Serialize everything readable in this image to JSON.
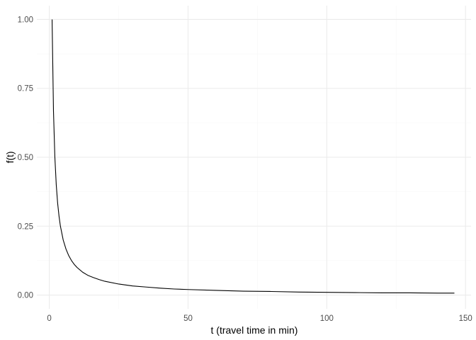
{
  "chart_data": {
    "type": "line",
    "title": "",
    "xlabel": "t (travel time in min)",
    "ylabel": "f(t)",
    "xlim": [
      -4.5,
      152
    ],
    "ylim": [
      -0.05,
      1.05
    ],
    "x_major_ticks": [
      0,
      50,
      100,
      150
    ],
    "x_tick_labels": [
      "0",
      "50",
      "100",
      "150"
    ],
    "x_minor_ticks": [
      25,
      75,
      125
    ],
    "y_major_ticks": [
      0,
      0.25,
      0.5,
      0.75,
      1.0
    ],
    "y_tick_labels": [
      "0.00",
      "0.25",
      "0.50",
      "0.75",
      "1.00"
    ],
    "y_minor_ticks": [
      0.125,
      0.375,
      0.625,
      0.875
    ],
    "grid": true,
    "legend": "none",
    "series": [
      {
        "color": "#000000",
        "x": [
          1,
          1.5,
          2,
          2.5,
          3,
          3.5,
          4,
          5,
          6,
          7,
          8,
          9,
          10,
          12,
          14,
          16,
          18,
          20,
          25,
          30,
          35,
          40,
          45,
          50,
          60,
          70,
          80,
          90,
          100,
          110,
          120,
          130,
          140,
          146
        ],
        "y": [
          1.0,
          0.667,
          0.5,
          0.4,
          0.333,
          0.286,
          0.25,
          0.2,
          0.167,
          0.143,
          0.125,
          0.111,
          0.1,
          0.083,
          0.071,
          0.063,
          0.056,
          0.05,
          0.04,
          0.033,
          0.029,
          0.025,
          0.022,
          0.02,
          0.017,
          0.014,
          0.013,
          0.011,
          0.01,
          0.009,
          0.008,
          0.008,
          0.007,
          0.007
        ]
      }
    ]
  }
}
